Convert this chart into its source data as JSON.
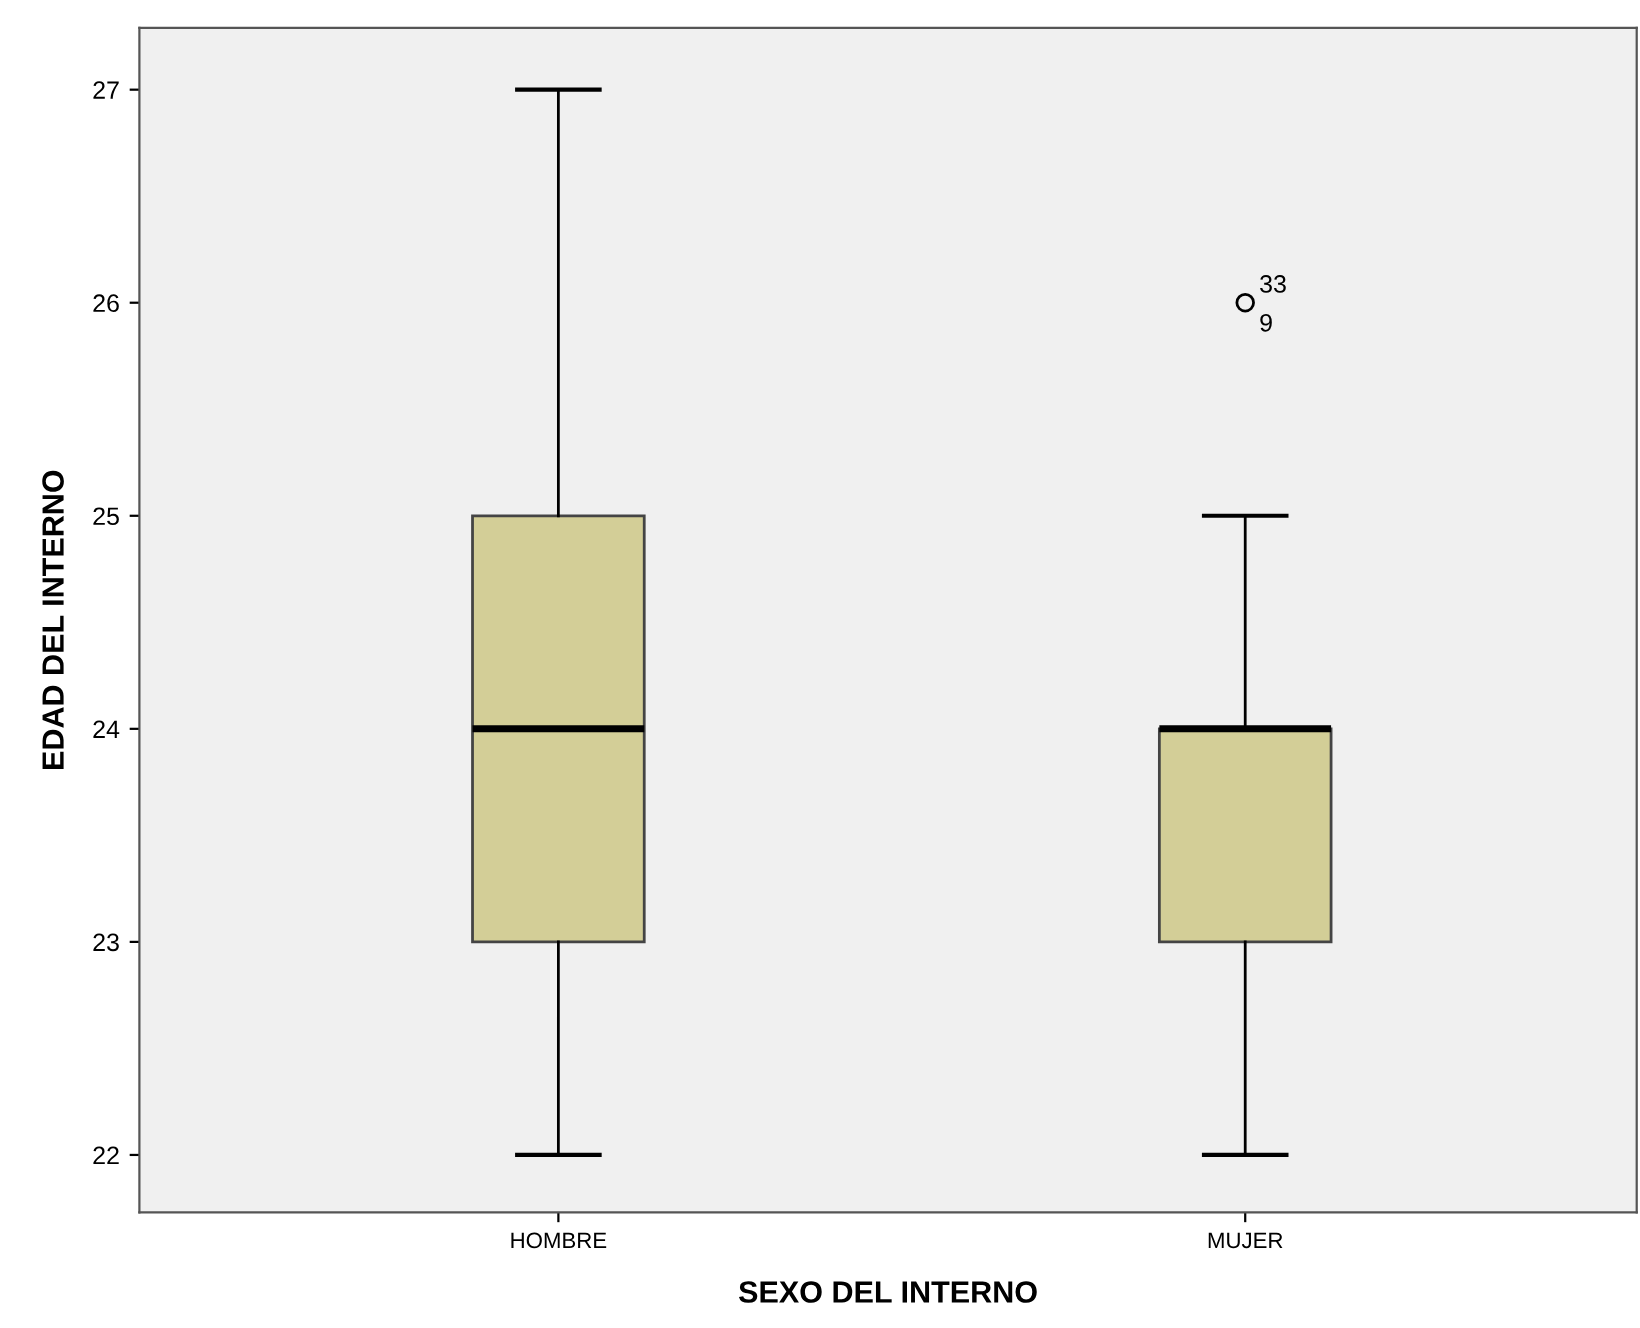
{
  "chart_data": {
    "type": "box",
    "xlabel": "SEXO DEL INTERNO",
    "ylabel": "EDAD DEL INTERNO",
    "categories": [
      "HOMBRE",
      "MUJER"
    ],
    "boxes": [
      {
        "low": 22,
        "q1": 23,
        "median": 24,
        "q3": 25,
        "high": 27
      },
      {
        "low": 22,
        "q1": 23,
        "median": 24,
        "q3": 24,
        "high": 25,
        "outliers": [
          26
        ]
      }
    ],
    "color": "#d3ce97",
    "ylim": [
      21.73,
      27.29
    ],
    "yticks": [
      22,
      23,
      24,
      25,
      26,
      27
    ],
    "grid": false,
    "marker": "circle",
    "annotations": [
      "33",
      "9"
    ]
  }
}
